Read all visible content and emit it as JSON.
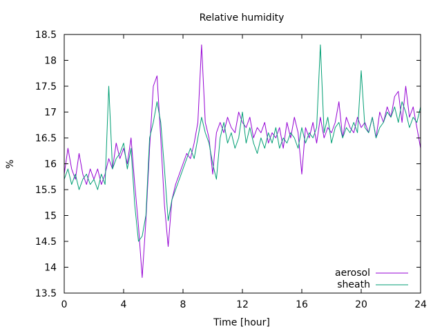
{
  "chart_data": {
    "type": "line",
    "title": "Relative humidity",
    "xlabel": "Time [hour]",
    "ylabel": "%",
    "xlim": [
      0,
      24
    ],
    "ylim": [
      13.5,
      18.5
    ],
    "xticks": [
      0,
      4,
      8,
      12,
      16,
      20,
      24
    ],
    "xtick_labels": [
      "0",
      "4",
      "8",
      "12",
      "16",
      "20",
      "24"
    ],
    "yticks": [
      13.5,
      14,
      14.5,
      15,
      15.5,
      16,
      16.5,
      17,
      17.5,
      18,
      18.5
    ],
    "ytick_labels": [
      "13.5",
      "14",
      "14.5",
      "15",
      "15.5",
      "16",
      "16.5",
      "17",
      "17.5",
      "18",
      "18.5"
    ],
    "grid": false,
    "legend_position": "bottom-right",
    "x": [
      0.0,
      0.25,
      0.5,
      0.75,
      1.0,
      1.25,
      1.5,
      1.75,
      2.0,
      2.25,
      2.5,
      2.75,
      3.0,
      3.25,
      3.5,
      3.75,
      4.0,
      4.25,
      4.5,
      4.75,
      5.0,
      5.25,
      5.5,
      5.75,
      6.0,
      6.25,
      6.5,
      6.75,
      7.0,
      7.25,
      7.5,
      7.75,
      8.0,
      8.25,
      8.5,
      8.75,
      9.0,
      9.25,
      9.5,
      9.75,
      10.0,
      10.25,
      10.5,
      10.75,
      11.0,
      11.25,
      11.5,
      11.75,
      12.0,
      12.25,
      12.5,
      12.75,
      13.0,
      13.25,
      13.5,
      13.75,
      14.0,
      14.25,
      14.5,
      14.75,
      15.0,
      15.25,
      15.5,
      15.75,
      16.0,
      16.25,
      16.5,
      16.75,
      17.0,
      17.25,
      17.5,
      17.75,
      18.0,
      18.25,
      18.5,
      18.75,
      19.0,
      19.25,
      19.5,
      19.75,
      20.0,
      20.25,
      20.5,
      20.75,
      21.0,
      21.25,
      21.5,
      21.75,
      22.0,
      22.25,
      22.5,
      22.75,
      23.0,
      23.25,
      23.5,
      23.75,
      24.0
    ],
    "series": [
      {
        "name": "aerosol",
        "color": "#9400d3",
        "values": [
          15.8,
          16.3,
          15.9,
          15.7,
          16.2,
          15.8,
          15.6,
          15.9,
          15.7,
          15.9,
          15.6,
          15.8,
          16.1,
          15.9,
          16.4,
          16.1,
          16.3,
          16.0,
          16.5,
          15.6,
          14.8,
          13.8,
          14.9,
          16.3,
          17.5,
          17.7,
          16.5,
          15.2,
          14.4,
          15.3,
          15.6,
          15.8,
          16.0,
          16.2,
          16.1,
          16.4,
          16.8,
          18.3,
          16.8,
          16.5,
          15.8,
          16.6,
          16.8,
          16.6,
          16.9,
          16.7,
          16.6,
          17.0,
          16.8,
          16.7,
          16.9,
          16.5,
          16.7,
          16.6,
          16.8,
          16.4,
          16.6,
          16.5,
          16.7,
          16.3,
          16.8,
          16.5,
          16.9,
          16.6,
          15.8,
          16.7,
          16.5,
          16.8,
          16.4,
          16.9,
          16.5,
          16.7,
          16.6,
          16.8,
          17.2,
          16.5,
          16.9,
          16.7,
          16.6,
          16.9,
          16.7,
          16.8,
          16.6,
          16.9,
          16.5,
          17.0,
          16.8,
          17.1,
          16.9,
          17.3,
          17.4,
          16.8,
          17.5,
          16.9,
          17.1,
          16.7,
          16.3
        ]
      },
      {
        "name": "sheath",
        "color": "#009e73",
        "values": [
          15.7,
          15.9,
          15.6,
          15.8,
          15.5,
          15.7,
          15.8,
          15.6,
          15.7,
          15.5,
          15.8,
          15.6,
          17.5,
          15.9,
          16.1,
          16.2,
          16.4,
          15.9,
          16.3,
          15.2,
          14.5,
          14.6,
          15.0,
          16.5,
          16.8,
          17.2,
          16.8,
          15.9,
          14.9,
          15.3,
          15.5,
          15.7,
          15.9,
          16.1,
          16.3,
          16.1,
          16.5,
          16.9,
          16.6,
          16.4,
          16.0,
          15.7,
          16.5,
          16.8,
          16.4,
          16.6,
          16.3,
          16.5,
          17.0,
          16.4,
          16.7,
          16.4,
          16.2,
          16.5,
          16.3,
          16.6,
          16.4,
          16.7,
          16.3,
          16.5,
          16.4,
          16.6,
          16.5,
          16.3,
          16.7,
          16.4,
          16.6,
          16.5,
          16.7,
          18.3,
          16.6,
          16.9,
          16.4,
          16.7,
          16.8,
          16.5,
          16.7,
          16.6,
          16.8,
          16.6,
          17.8,
          16.7,
          16.6,
          16.9,
          16.5,
          16.7,
          16.8,
          17.0,
          16.9,
          17.1,
          16.8,
          17.2,
          17.0,
          16.7,
          16.9,
          16.8,
          17.1
        ]
      }
    ]
  }
}
